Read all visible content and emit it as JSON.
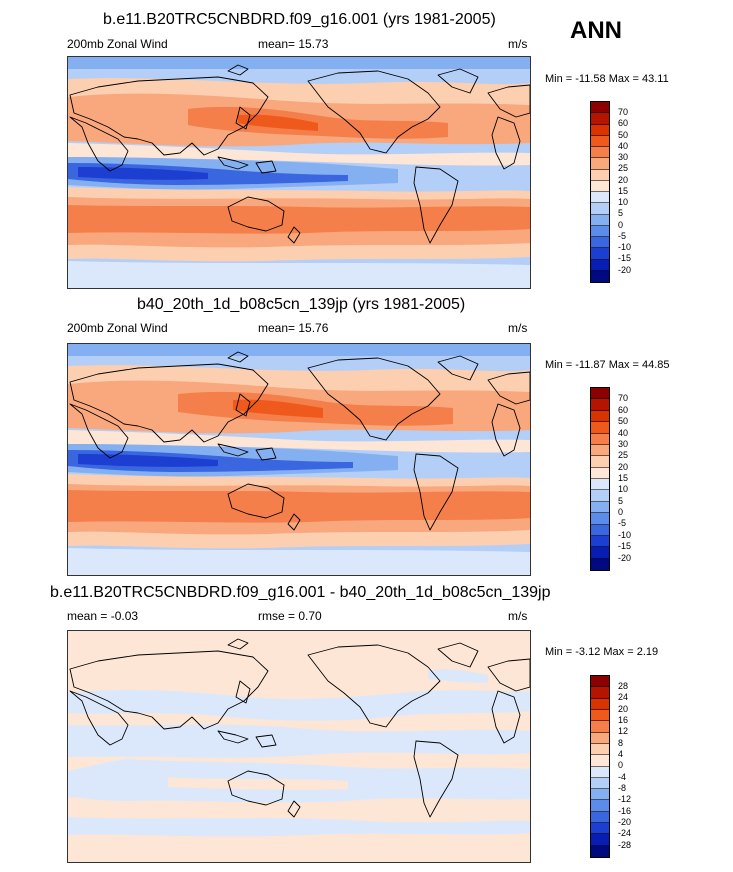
{
  "season": "ANN",
  "panels": [
    {
      "title": "b.e11.B20TRC5CNBDRD.f09_g16.001 (yrs 1981-2005)",
      "left_label": "200mb Zonal Wind",
      "center_label": "mean=  15.73",
      "units": "m/s",
      "minmax": "Min = -11.58 Max =  43.11"
    },
    {
      "title": "b40_20th_1d_b08c5cn_139jp (yrs 1981-2005)",
      "left_label": "200mb Zonal Wind",
      "center_label": "mean=  15.76",
      "units": "m/s",
      "minmax": "Min = -11.87 Max =  44.85"
    },
    {
      "title": "b.e11.B20TRC5CNBDRD.f09_g16.001 - b40_20th_1d_b08c5cn_139jp",
      "left_label": "mean =  -0.03",
      "center_label": "rmse =   0.70",
      "units": "m/s",
      "minmax": "Min =  -3.12 Max =   2.19"
    }
  ],
  "colorbar_main": {
    "labels": [
      "70",
      "60",
      "50",
      "40",
      "30",
      "25",
      "20",
      "15",
      "10",
      "5",
      "0",
      "-5",
      "-10",
      "-15",
      "-20"
    ],
    "colors": [
      "#8c0000",
      "#b51400",
      "#d93300",
      "#ef5a1c",
      "#f47f4a",
      "#f9a77d",
      "#fccfb0",
      "#fde6d6",
      "#dbe8fb",
      "#b3cef7",
      "#84aff0",
      "#5c8ce9",
      "#3a66e0",
      "#1d3fd1",
      "#0a1db3",
      "#000a80"
    ]
  },
  "colorbar_diff": {
    "labels": [
      "28",
      "24",
      "20",
      "16",
      "12",
      "8",
      "4",
      "0",
      "-4",
      "-8",
      "-12",
      "-16",
      "-20",
      "-24",
      "-28"
    ],
    "colors": [
      "#8c0000",
      "#b51400",
      "#d93300",
      "#ef5a1c",
      "#f47f4a",
      "#f9a77d",
      "#fccfb0",
      "#fde6d6",
      "#dbe8fb",
      "#b3cef7",
      "#84aff0",
      "#5c8ce9",
      "#3a66e0",
      "#1d3fd1",
      "#0a1db3",
      "#000a80"
    ]
  }
}
